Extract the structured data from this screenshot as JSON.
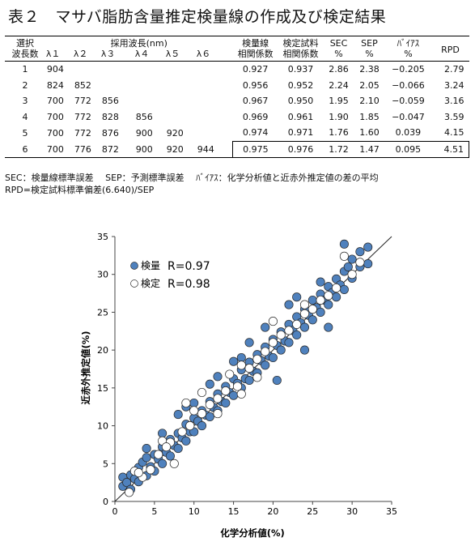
{
  "title": "表２　マサバ脂肪含量推定検量線の作成及び検定結果",
  "table": {
    "headers": {
      "sel": [
        "選択",
        "波長数"
      ],
      "wave_group": "採用波長(nm)",
      "lambdas": [
        "λ１",
        "λ２",
        "λ３",
        "λ４",
        "λ５",
        "λ６"
      ],
      "cal": [
        "検量線",
        "相関係数"
      ],
      "val": [
        "検定試料",
        "相関係数"
      ],
      "sec": [
        "SEC",
        "%"
      ],
      "sep": [
        "SEP",
        "%"
      ],
      "bias": [
        "ﾊﾞｲｱｽ",
        "%"
      ],
      "rpd": "RPD"
    },
    "rows": [
      {
        "n": "1",
        "w": [
          "904",
          "",
          "",
          "",
          "",
          ""
        ],
        "cal": "0.927",
        "val": "0.937",
        "sec": "2.86",
        "sep": "2.38",
        "bias": "−0.205",
        "rpd": "2.79"
      },
      {
        "n": "2",
        "w": [
          "824",
          "852",
          "",
          "",
          "",
          ""
        ],
        "cal": "0.956",
        "val": "0.952",
        "sec": "2.24",
        "sep": "2.05",
        "bias": "−0.066",
        "rpd": "3.24"
      },
      {
        "n": "3",
        "w": [
          "700",
          "772",
          "856",
          "",
          "",
          ""
        ],
        "cal": "0.967",
        "val": "0.950",
        "sec": "1.95",
        "sep": "2.10",
        "bias": "−0.059",
        "rpd": "3.16"
      },
      {
        "n": "4",
        "w": [
          "700",
          "772",
          "828",
          "856",
          "",
          ""
        ],
        "cal": "0.969",
        "val": "0.961",
        "sec": "1.90",
        "sep": "1.85",
        "bias": "−0.047",
        "rpd": "3.59"
      },
      {
        "n": "5",
        "w": [
          "700",
          "772",
          "876",
          "900",
          "920",
          ""
        ],
        "cal": "0.974",
        "val": "0.971",
        "sec": "1.76",
        "sep": "1.60",
        "bias": "0.039",
        "rpd": "4.15"
      },
      {
        "n": "6",
        "w": [
          "700",
          "776",
          "872",
          "900",
          "920",
          "944"
        ],
        "cal": "0.975",
        "val": "0.976",
        "sec": "1.72",
        "sep": "1.47",
        "bias": "0.095",
        "rpd": "4.51"
      }
    ]
  },
  "notes": [
    "SEC：検量線標準誤差　 SEP：予測標準誤差　 ﾊﾞｲｱｽ：化学分析値と近赤外推定値の差の平均",
    "RPD=検定試料標準偏差(6.640)/SEP"
  ],
  "chart_data": {
    "type": "scatter",
    "xlabel": "化学分析値(%)",
    "ylabel": "近赤外推定値(%)",
    "xlim": [
      0,
      35
    ],
    "ylim": [
      0,
      35
    ],
    "xticks": [
      0,
      5,
      10,
      15,
      20,
      25,
      30,
      35
    ],
    "yticks": [
      0,
      5,
      10,
      15,
      20,
      25,
      30,
      35
    ],
    "grid": false,
    "reference_line": [
      [
        0,
        0
      ],
      [
        35,
        35
      ]
    ],
    "legend_position": "top-left",
    "series": [
      {
        "name": "検量",
        "r_label": "R=0.97",
        "color": "#4f81bd",
        "marker": "filled-circle",
        "points": [
          [
            1,
            2
          ],
          [
            1,
            3.2
          ],
          [
            1.5,
            2.5
          ],
          [
            2,
            3.5
          ],
          [
            2,
            1.6
          ],
          [
            2.5,
            3
          ],
          [
            3,
            4.5
          ],
          [
            3,
            2.6
          ],
          [
            3.5,
            5.2
          ],
          [
            4,
            3.4
          ],
          [
            4,
            5.8
          ],
          [
            4.5,
            4.6
          ],
          [
            5,
            6.2
          ],
          [
            5,
            4
          ],
          [
            5.5,
            5.6
          ],
          [
            6,
            7.2
          ],
          [
            6,
            5
          ],
          [
            6.5,
            6.5
          ],
          [
            7,
            8.2
          ],
          [
            7,
            6
          ],
          [
            7.5,
            7.4
          ],
          [
            8,
            9
          ],
          [
            8,
            7
          ],
          [
            8.5,
            8.4
          ],
          [
            9,
            10.2
          ],
          [
            9,
            8
          ],
          [
            9.5,
            9.2
          ],
          [
            10,
            11
          ],
          [
            10,
            9.2
          ],
          [
            10.5,
            10.6
          ],
          [
            11,
            12
          ],
          [
            11,
            10
          ],
          [
            11.5,
            11.4
          ],
          [
            12,
            13.2
          ],
          [
            12,
            11.2
          ],
          [
            12.5,
            12.4
          ],
          [
            13,
            14.2
          ],
          [
            13,
            12
          ],
          [
            13.5,
            13.2
          ],
          [
            14,
            15.2
          ],
          [
            14,
            13
          ],
          [
            14.5,
            14.4
          ],
          [
            15,
            16.2
          ],
          [
            15,
            14
          ],
          [
            15.5,
            15.6
          ],
          [
            16,
            17.4
          ],
          [
            16,
            15
          ],
          [
            16.5,
            16.2
          ],
          [
            17,
            18.4
          ],
          [
            17,
            16
          ],
          [
            17.5,
            17.2
          ],
          [
            18,
            19.4
          ],
          [
            18,
            17
          ],
          [
            18.5,
            18.6
          ],
          [
            19,
            20.4
          ],
          [
            19,
            18
          ],
          [
            19.5,
            19.2
          ],
          [
            20,
            21.4
          ],
          [
            20,
            19
          ],
          [
            20.5,
            20.6
          ],
          [
            21,
            22.4
          ],
          [
            21,
            20
          ],
          [
            21.5,
            21.2
          ],
          [
            22,
            23.4
          ],
          [
            22,
            21
          ],
          [
            22.5,
            22.6
          ],
          [
            23,
            24.4
          ],
          [
            23,
            22
          ],
          [
            23.5,
            23.6
          ],
          [
            24,
            25.4
          ],
          [
            24,
            23
          ],
          [
            24.5,
            24.6
          ],
          [
            25,
            26.6
          ],
          [
            25,
            24
          ],
          [
            25.5,
            25.6
          ],
          [
            26,
            27.4
          ],
          [
            26,
            25
          ],
          [
            26.5,
            26.6
          ],
          [
            27,
            28.4
          ],
          [
            27,
            26
          ],
          [
            27.5,
            27.6
          ],
          [
            28,
            29.4
          ],
          [
            28,
            27
          ],
          [
            28.5,
            28.6
          ],
          [
            29,
            30.4
          ],
          [
            29,
            28
          ],
          [
            29.5,
            31
          ],
          [
            30,
            32
          ],
          [
            30,
            29.5
          ],
          [
            31,
            33
          ],
          [
            31,
            31
          ],
          [
            32,
            33.6
          ],
          [
            32,
            31.4
          ],
          [
            29,
            34
          ],
          [
            24,
            20
          ],
          [
            27,
            23
          ],
          [
            17,
            21
          ],
          [
            20.5,
            16
          ],
          [
            13,
            16.5
          ],
          [
            9,
            12.5
          ],
          [
            6,
            9
          ],
          [
            12,
            15.5
          ],
          [
            15,
            18.5
          ],
          [
            19,
            23
          ],
          [
            22,
            26
          ],
          [
            26,
            29
          ],
          [
            16,
            19
          ],
          [
            10,
            13
          ],
          [
            8,
            11.5
          ],
          [
            4,
            7
          ],
          [
            23,
            27
          ]
        ]
      },
      {
        "name": "検定",
        "r_label": "R=0.98",
        "color": "#ffffff",
        "marker": "open-circle",
        "points": [
          [
            1.8,
            1.2
          ],
          [
            2.5,
            4
          ],
          [
            3.5,
            3.2
          ],
          [
            4.5,
            4.2
          ],
          [
            5.5,
            6.2
          ],
          [
            6,
            8
          ],
          [
            7,
            7.8
          ],
          [
            7.5,
            5
          ],
          [
            8.5,
            9.2
          ],
          [
            9.5,
            10
          ],
          [
            10,
            12
          ],
          [
            11,
            11.6
          ],
          [
            12,
            12.8
          ],
          [
            13,
            13.6
          ],
          [
            14,
            14.6
          ],
          [
            14.5,
            16.8
          ],
          [
            15.5,
            15.2
          ],
          [
            16,
            18
          ],
          [
            17,
            17.6
          ],
          [
            18,
            18.8
          ],
          [
            19,
            19.8
          ],
          [
            20,
            21
          ],
          [
            21,
            22
          ],
          [
            22,
            22.6
          ],
          [
            23,
            23.4
          ],
          [
            24,
            24.8
          ],
          [
            25,
            25.4
          ],
          [
            26,
            26.6
          ],
          [
            27,
            27.2
          ],
          [
            28,
            28.2
          ],
          [
            29,
            32.4
          ],
          [
            30,
            30
          ],
          [
            31,
            31.6
          ],
          [
            9,
            13
          ],
          [
            11,
            14.4
          ],
          [
            13,
            11.6
          ],
          [
            16,
            14.2
          ],
          [
            18,
            16.4
          ],
          [
            20,
            23.8
          ],
          [
            3,
            3.8
          ],
          [
            6.5,
            7.2
          ],
          [
            24,
            26
          ]
        ]
      }
    ]
  }
}
